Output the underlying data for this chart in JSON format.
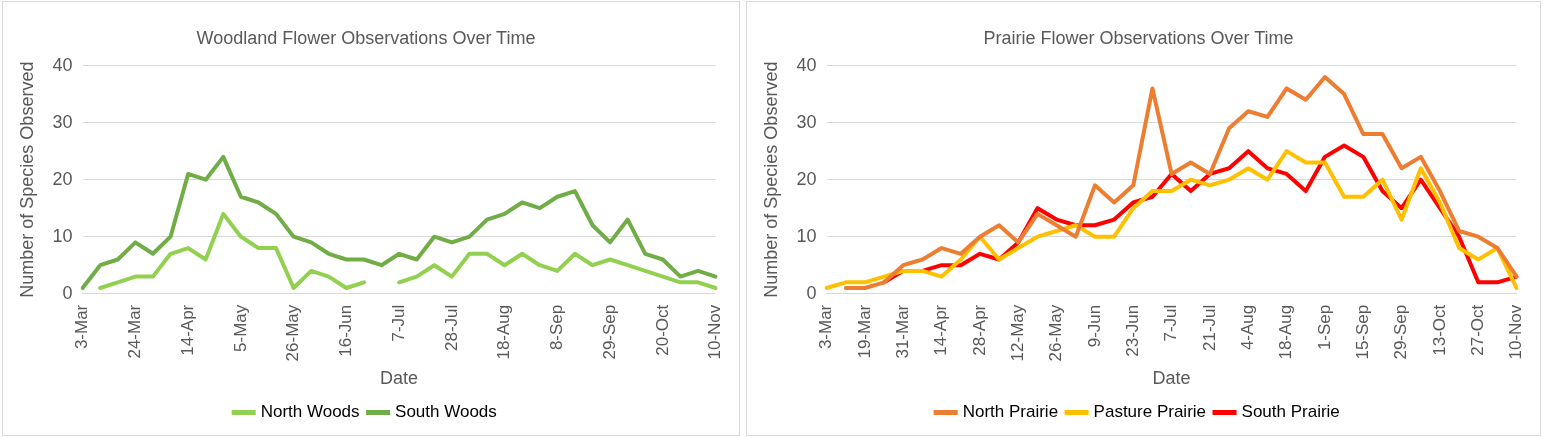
{
  "chart_data": [
    {
      "type": "line",
      "title": "Woodland Flower Observations Over Time",
      "xlabel": "Date",
      "ylabel": "Number of Species Observed",
      "categories": [
        "3-Mar",
        null,
        null,
        "24-Mar",
        null,
        null,
        "14-Apr",
        null,
        null,
        "5-May",
        null,
        null,
        "26-May",
        null,
        null,
        "16-Jun",
        null,
        null,
        "7-Jul",
        null,
        null,
        "28-Jul",
        null,
        null,
        "18-Aug",
        null,
        null,
        "8-Sep",
        null,
        null,
        "29-Sep",
        null,
        null,
        "20-Oct",
        null,
        null,
        "10-Nov"
      ],
      "series": [
        {
          "name": "North Woods",
          "color": "#92d050",
          "values": [
            null,
            1,
            2,
            3,
            3,
            7,
            8,
            6,
            14,
            10,
            8,
            8,
            1,
            4,
            3,
            1,
            2,
            null,
            2,
            3,
            5,
            3,
            7,
            7,
            5,
            7,
            5,
            4,
            7,
            5,
            6,
            5,
            4,
            3,
            2,
            2,
            1
          ]
        },
        {
          "name": "South Woods",
          "color": "#70ad47",
          "values": [
            1,
            5,
            6,
            9,
            7,
            10,
            21,
            20,
            24,
            17,
            16,
            14,
            10,
            9,
            7,
            6,
            6,
            5,
            7,
            6,
            10,
            9,
            10,
            13,
            14,
            16,
            15,
            17,
            18,
            12,
            9,
            13,
            7,
            6,
            3,
            4,
            3
          ]
        }
      ],
      "ylim": [
        0,
        40
      ],
      "yticks": [
        0,
        10,
        20,
        30,
        40
      ],
      "grid": "y",
      "legend": "bottom",
      "marker": "none"
    },
    {
      "type": "line",
      "title": "Prairie Flower Observations Over Time",
      "xlabel": "Date",
      "ylabel": "Number of Species Observed",
      "categories": [
        "3-Mar",
        null,
        "19-Mar",
        null,
        "31-Mar",
        null,
        "14-Apr",
        null,
        "28-Apr",
        null,
        "12-May",
        null,
        "26-May",
        null,
        "9-Jun",
        null,
        "23-Jun",
        null,
        "7-Jul",
        null,
        "21-Jul",
        null,
        "4-Aug",
        null,
        "18-Aug",
        null,
        "1-Sep",
        null,
        "15-Sep",
        null,
        "29-Sep",
        null,
        "13-Oct",
        null,
        "27-Oct",
        null,
        "10-Nov"
      ],
      "series": [
        {
          "name": "North Prairie",
          "color": "#ed7d31",
          "values": [
            null,
            1,
            1,
            2,
            5,
            6,
            8,
            7,
            10,
            12,
            9,
            14,
            12,
            10,
            19,
            16,
            19,
            36,
            21,
            23,
            21,
            29,
            32,
            31,
            36,
            34,
            38,
            35,
            28,
            28,
            22,
            24,
            18,
            11,
            10,
            8,
            3
          ]
        },
        {
          "name": "Pasture Prairie",
          "color": "#ffc000",
          "values": [
            1,
            2,
            2,
            3,
            4,
            4,
            3,
            6,
            10,
            6,
            8,
            10,
            11,
            12,
            10,
            10,
            15,
            18,
            18,
            20,
            19,
            20,
            22,
            20,
            25,
            23,
            23,
            17,
            17,
            20,
            13,
            22,
            16,
            8,
            6,
            8,
            1
          ]
        },
        {
          "name": "South Prairie",
          "color": "#ff0000",
          "values": [
            null,
            null,
            null,
            2,
            4,
            4,
            5,
            5,
            7,
            6,
            9,
            15,
            13,
            12,
            12,
            13,
            16,
            17,
            21,
            18,
            21,
            22,
            25,
            22,
            21,
            18,
            24,
            26,
            24,
            18,
            15,
            20,
            15,
            10,
            2,
            2,
            3
          ]
        }
      ],
      "ylim": [
        0,
        40
      ],
      "yticks": [
        0,
        10,
        20,
        30,
        40
      ],
      "grid": "y",
      "legend": "bottom",
      "marker": "none"
    }
  ]
}
